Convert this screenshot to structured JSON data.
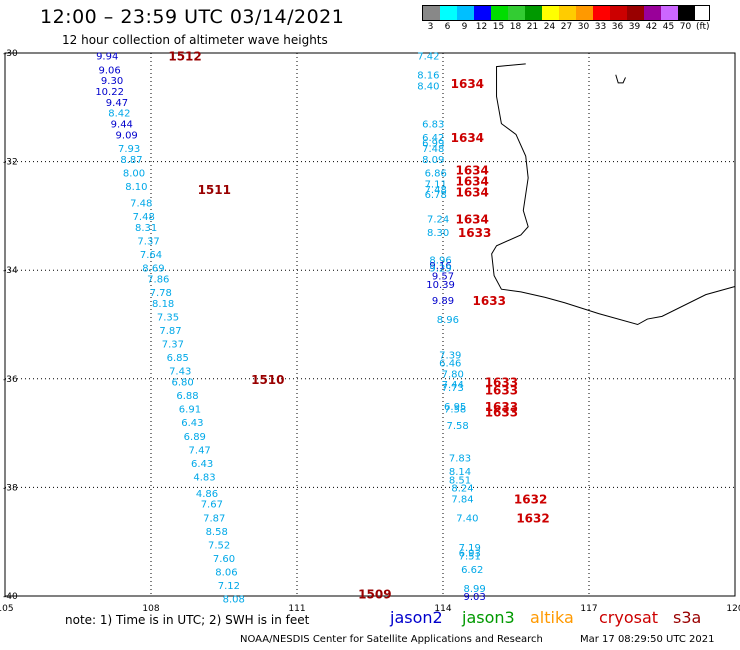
{
  "header": {
    "title": "12:00 – 23:59 UTC 03/14/2021",
    "subtitle": "12 hour collection of altimeter wave heights"
  },
  "legend": {
    "colors": [
      "#888888",
      "#00ffff",
      "#00bfff",
      "#0000ff",
      "#00dd00",
      "#33cc33",
      "#009900",
      "#ffff00",
      "#ffcc00",
      "#ff9900",
      "#ff0000",
      "#cc0000",
      "#990000",
      "#990099",
      "#cc66ff",
      "#000000"
    ],
    "labels": [
      "3",
      "6",
      "9",
      "12",
      "15",
      "18",
      "21",
      "24",
      "27",
      "30",
      "33",
      "36",
      "39",
      "42",
      "45",
      "70"
    ],
    "unit": "(ft)"
  },
  "axes": {
    "lon_ticks": [
      "105",
      "108",
      "111",
      "114",
      "117",
      "120"
    ],
    "lat_ticks": [
      "-30",
      "-32",
      "-34",
      "-36",
      "-38",
      "-40"
    ]
  },
  "colors": {
    "jason2": "#0000cc",
    "jason3": "#009900",
    "altika": "#ff9900",
    "cryosat": "#cc0000",
    "s3a": "#990000",
    "light": "#00a8e8"
  },
  "chart_data": {
    "type": "map",
    "lon_range": [
      105,
      120
    ],
    "lat_range": [
      -40,
      -30
    ],
    "grid": true,
    "passes": [
      {
        "id": "1512",
        "lon": 108.7,
        "lat": -30.05,
        "color": "s3a"
      },
      {
        "id": "1511",
        "lon": 109.3,
        "lat": -32.5,
        "color": "s3a"
      },
      {
        "id": "1510",
        "lon": 110.4,
        "lat": -36.0,
        "color": "s3a"
      },
      {
        "id": "1509",
        "lon": 112.6,
        "lat": -39.95,
        "color": "s3a"
      },
      {
        "id": "1634",
        "lon": 114.5,
        "lat": -30.55,
        "color": "cryosat"
      },
      {
        "id": "1634",
        "lon": 114.5,
        "lat": -31.55,
        "color": "cryosat"
      },
      {
        "id": "1634",
        "lon": 114.6,
        "lat": -32.15,
        "color": "cryosat"
      },
      {
        "id": "1634",
        "lon": 114.6,
        "lat": -32.35,
        "color": "cryosat"
      },
      {
        "id": "1634",
        "lon": 114.6,
        "lat": -32.55,
        "color": "cryosat"
      },
      {
        "id": "1634",
        "lon": 114.6,
        "lat": -33.05,
        "color": "cryosat"
      },
      {
        "id": "1633",
        "lon": 114.65,
        "lat": -33.3,
        "color": "cryosat"
      },
      {
        "id": "1633",
        "lon": 114.95,
        "lat": -34.55,
        "color": "cryosat"
      },
      {
        "id": "1633",
        "lon": 115.2,
        "lat": -36.05,
        "color": "cryosat"
      },
      {
        "id": "1633",
        "lon": 115.2,
        "lat": -36.2,
        "color": "cryosat"
      },
      {
        "id": "1633",
        "lon": 115.2,
        "lat": -36.5,
        "color": "cryosat"
      },
      {
        "id": "1633",
        "lon": 115.2,
        "lat": -36.6,
        "color": "cryosat"
      },
      {
        "id": "1632",
        "lon": 115.8,
        "lat": -38.2,
        "color": "cryosat"
      },
      {
        "id": "1632",
        "lon": 115.85,
        "lat": -38.55,
        "color": "cryosat"
      }
    ],
    "values": [
      {
        "v": "9.94",
        "lon": 107.1,
        "lat": -30.05,
        "color": "jason2"
      },
      {
        "v": "9.06",
        "lon": 107.15,
        "lat": -30.3,
        "color": "jason2"
      },
      {
        "v": "9.30",
        "lon": 107.2,
        "lat": -30.5,
        "color": "jason2"
      },
      {
        "v": "10.22",
        "lon": 107.15,
        "lat": -30.7,
        "color": "jason2"
      },
      {
        "v": "9.47",
        "lon": 107.3,
        "lat": -30.9,
        "color": "jason2"
      },
      {
        "v": "8.42",
        "lon": 107.35,
        "lat": -31.1,
        "color": "light"
      },
      {
        "v": "9.44",
        "lon": 107.4,
        "lat": -31.3,
        "color": "jason2"
      },
      {
        "v": "9.09",
        "lon": 107.5,
        "lat": -31.5,
        "color": "jason2"
      },
      {
        "v": "7.93",
        "lon": 107.55,
        "lat": -31.75,
        "color": "light"
      },
      {
        "v": "8.87",
        "lon": 107.6,
        "lat": -31.95,
        "color": "light"
      },
      {
        "v": "8.00",
        "lon": 107.65,
        "lat": -32.2,
        "color": "light"
      },
      {
        "v": "8.10",
        "lon": 107.7,
        "lat": -32.45,
        "color": "light"
      },
      {
        "v": "7.48",
        "lon": 107.8,
        "lat": -32.75,
        "color": "light"
      },
      {
        "v": "7.48",
        "lon": 107.85,
        "lat": -33.0,
        "color": "light"
      },
      {
        "v": "8.31",
        "lon": 107.9,
        "lat": -33.2,
        "color": "light"
      },
      {
        "v": "7.37",
        "lon": 107.95,
        "lat": -33.45,
        "color": "light"
      },
      {
        "v": "7.64",
        "lon": 108.0,
        "lat": -33.7,
        "color": "light"
      },
      {
        "v": "8.69",
        "lon": 108.05,
        "lat": -33.95,
        "color": "light"
      },
      {
        "v": "7.86",
        "lon": 108.15,
        "lat": -34.15,
        "color": "light"
      },
      {
        "v": "7.78",
        "lon": 108.2,
        "lat": -34.4,
        "color": "light"
      },
      {
        "v": "8.18",
        "lon": 108.25,
        "lat": -34.6,
        "color": "light"
      },
      {
        "v": "7.35",
        "lon": 108.35,
        "lat": -34.85,
        "color": "light"
      },
      {
        "v": "7.87",
        "lon": 108.4,
        "lat": -35.1,
        "color": "light"
      },
      {
        "v": "7.37",
        "lon": 108.45,
        "lat": -35.35,
        "color": "light"
      },
      {
        "v": "6.85",
        "lon": 108.55,
        "lat": -35.6,
        "color": "light"
      },
      {
        "v": "7.43",
        "lon": 108.6,
        "lat": -35.85,
        "color": "light"
      },
      {
        "v": "6.80",
        "lon": 108.65,
        "lat": -36.05,
        "color": "light"
      },
      {
        "v": "6.88",
        "lon": 108.75,
        "lat": -36.3,
        "color": "light"
      },
      {
        "v": "6.91",
        "lon": 108.8,
        "lat": -36.55,
        "color": "light"
      },
      {
        "v": "6.43",
        "lon": 108.85,
        "lat": -36.8,
        "color": "light"
      },
      {
        "v": "6.89",
        "lon": 108.9,
        "lat": -37.05,
        "color": "light"
      },
      {
        "v": "7.47",
        "lon": 109.0,
        "lat": -37.3,
        "color": "light"
      },
      {
        "v": "6.43",
        "lon": 109.05,
        "lat": -37.55,
        "color": "light"
      },
      {
        "v": "4.83",
        "lon": 109.1,
        "lat": -37.8,
        "color": "light"
      },
      {
        "v": "4.86",
        "lon": 109.15,
        "lat": -38.1,
        "color": "light"
      },
      {
        "v": "7.67",
        "lon": 109.25,
        "lat": -38.3,
        "color": "light"
      },
      {
        "v": "7.87",
        "lon": 109.3,
        "lat": -38.55,
        "color": "light"
      },
      {
        "v": "8.58",
        "lon": 109.35,
        "lat": -38.8,
        "color": "light"
      },
      {
        "v": "7.52",
        "lon": 109.4,
        "lat": -39.05,
        "color": "light"
      },
      {
        "v": "7.60",
        "lon": 109.5,
        "lat": -39.3,
        "color": "light"
      },
      {
        "v": "8.06",
        "lon": 109.55,
        "lat": -39.55,
        "color": "light"
      },
      {
        "v": "7.12",
        "lon": 109.6,
        "lat": -39.8,
        "color": "light"
      },
      {
        "v": "8.08",
        "lon": 109.7,
        "lat": -40.05,
        "color": "light"
      },
      {
        "v": "7.42",
        "lon": 113.7,
        "lat": -30.05,
        "color": "light"
      },
      {
        "v": "8.16",
        "lon": 113.7,
        "lat": -30.4,
        "color": "light"
      },
      {
        "v": "8.40",
        "lon": 113.7,
        "lat": -30.6,
        "color": "light"
      },
      {
        "v": "6.83",
        "lon": 113.8,
        "lat": -31.3,
        "color": "light"
      },
      {
        "v": "6.42",
        "lon": 113.8,
        "lat": -31.55,
        "color": "light"
      },
      {
        "v": "6.99",
        "lon": 113.8,
        "lat": -31.65,
        "color": "light"
      },
      {
        "v": "7.48",
        "lon": 113.8,
        "lat": -31.75,
        "color": "light"
      },
      {
        "v": "8.09",
        "lon": 113.8,
        "lat": -31.95,
        "color": "light"
      },
      {
        "v": "6.86",
        "lon": 113.85,
        "lat": -32.2,
        "color": "light"
      },
      {
        "v": "7.11",
        "lon": 113.85,
        "lat": -32.4,
        "color": "light"
      },
      {
        "v": "7.48",
        "lon": 113.85,
        "lat": -32.5,
        "color": "light"
      },
      {
        "v": "6.78",
        "lon": 113.85,
        "lat": -32.6,
        "color": "light"
      },
      {
        "v": "7.24",
        "lon": 113.9,
        "lat": -33.05,
        "color": "light"
      },
      {
        "v": "8.30",
        "lon": 113.9,
        "lat": -33.3,
        "color": "light"
      },
      {
        "v": "8.96",
        "lon": 113.95,
        "lat": -33.8,
        "color": "light"
      },
      {
        "v": "9.16",
        "lon": 113.95,
        "lat": -33.9,
        "color": "jason2"
      },
      {
        "v": "9.29",
        "lon": 113.95,
        "lat": -33.95,
        "color": "light"
      },
      {
        "v": "9.57",
        "lon": 114.0,
        "lat": -34.1,
        "color": "jason2"
      },
      {
        "v": "10.39",
        "lon": 113.95,
        "lat": -34.25,
        "color": "jason2"
      },
      {
        "v": "9.89",
        "lon": 114.0,
        "lat": -34.55,
        "color": "jason2"
      },
      {
        "v": "8.96",
        "lon": 114.1,
        "lat": -34.9,
        "color": "light"
      },
      {
        "v": "7.39",
        "lon": 114.15,
        "lat": -35.55,
        "color": "light"
      },
      {
        "v": "6.46",
        "lon": 114.15,
        "lat": -35.7,
        "color": "light"
      },
      {
        "v": "7.80",
        "lon": 114.2,
        "lat": -35.9,
        "color": "light"
      },
      {
        "v": "7.44",
        "lon": 114.2,
        "lat": -36.1,
        "color": "light"
      },
      {
        "v": "7.73",
        "lon": 114.2,
        "lat": -36.15,
        "color": "light"
      },
      {
        "v": "6.95",
        "lon": 114.25,
        "lat": -36.5,
        "color": "light"
      },
      {
        "v": "7.58",
        "lon": 114.25,
        "lat": -36.55,
        "color": "light"
      },
      {
        "v": "7.58",
        "lon": 114.3,
        "lat": -36.85,
        "color": "light"
      },
      {
        "v": "7.83",
        "lon": 114.35,
        "lat": -37.45,
        "color": "light"
      },
      {
        "v": "8.14",
        "lon": 114.35,
        "lat": -37.7,
        "color": "light"
      },
      {
        "v": "8.51",
        "lon": 114.35,
        "lat": -37.85,
        "color": "light"
      },
      {
        "v": "8.24",
        "lon": 114.4,
        "lat": -38.0,
        "color": "light"
      },
      {
        "v": "7.84",
        "lon": 114.4,
        "lat": -38.2,
        "color": "light"
      },
      {
        "v": "7.40",
        "lon": 114.5,
        "lat": -38.55,
        "color": "light"
      },
      {
        "v": "7.19",
        "lon": 114.55,
        "lat": -39.1,
        "color": "light"
      },
      {
        "v": "6.93",
        "lon": 114.55,
        "lat": -39.2,
        "color": "light"
      },
      {
        "v": "7.51",
        "lon": 114.55,
        "lat": -39.25,
        "color": "light"
      },
      {
        "v": "6.62",
        "lon": 114.6,
        "lat": -39.5,
        "color": "light"
      },
      {
        "v": "8.99",
        "lon": 114.65,
        "lat": -39.85,
        "color": "light"
      },
      {
        "v": "9.03",
        "lon": 114.65,
        "lat": -40.0,
        "color": "jason2"
      }
    ],
    "coastline": [
      [
        115.7,
        -30.2
      ],
      [
        115.1,
        -30.25
      ],
      [
        115.1,
        -30.8
      ],
      [
        115.2,
        -31.3
      ],
      [
        115.5,
        -31.5
      ],
      [
        115.7,
        -31.9
      ],
      [
        115.75,
        -32.3
      ],
      [
        115.7,
        -32.6
      ],
      [
        115.65,
        -32.9
      ],
      [
        115.75,
        -33.2
      ],
      [
        115.6,
        -33.35
      ],
      [
        115.1,
        -33.55
      ],
      [
        115.0,
        -33.7
      ],
      [
        115.05,
        -34.1
      ],
      [
        115.2,
        -34.35
      ],
      [
        115.6,
        -34.4
      ],
      [
        116.1,
        -34.5
      ],
      [
        116.5,
        -34.6
      ],
      [
        117.2,
        -34.8
      ],
      [
        118.0,
        -35.0
      ],
      [
        118.2,
        -34.9
      ],
      [
        118.5,
        -34.85
      ],
      [
        119.4,
        -34.45
      ],
      [
        120,
        -34.3
      ]
    ],
    "island": [
      [
        117.55,
        -30.4
      ],
      [
        117.6,
        -30.55
      ],
      [
        117.7,
        -30.55
      ],
      [
        117.75,
        -30.45
      ]
    ]
  },
  "footer": {
    "note": "note: 1) Time is in UTC; 2) SWH is in feet",
    "missions": [
      "jason2",
      "jason3",
      "altika",
      "cryosat",
      "s3a"
    ],
    "credit": "NOAA/NESDIS Center for Satellite Applications and Research",
    "stamp": "Mar 17 08:29:50 UTC 2021"
  }
}
